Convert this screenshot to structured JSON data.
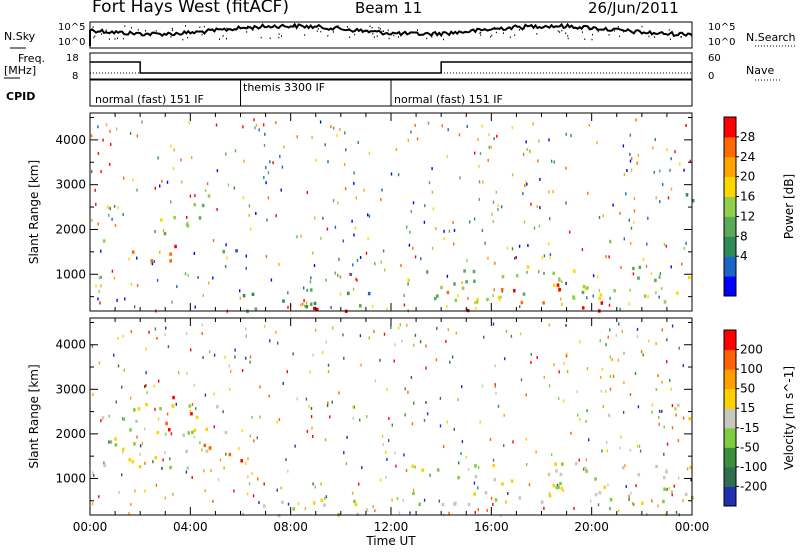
{
  "header": {
    "station": "Fort Hays West (fitACF)",
    "beam": "Beam 11",
    "date": "26/Jun/2011"
  },
  "strip_labels": {
    "nsky": "N.Sky",
    "nsearch": "N.Search",
    "nsky_ticks": [
      "10^5",
      "10^0"
    ],
    "nsearch_ticks": [
      "10^5",
      "10^0"
    ],
    "freq": "Freq.",
    "freq_unit": "[MHz]",
    "freq_ticks": [
      "18",
      "8"
    ],
    "nave": "Nave",
    "nave_ticks": [
      "60",
      "0"
    ],
    "cpid": "CPID"
  },
  "cpid_segments": [
    {
      "label": "normal (fast) 151 IF",
      "start_h": 0,
      "end_h": 6
    },
    {
      "label": "themis 3300 IF",
      "start_h": 6,
      "end_h": 12
    },
    {
      "label": "normal (fast) 151 IF",
      "start_h": 12,
      "end_h": 24
    }
  ],
  "chart_data": [
    {
      "type": "heatmap",
      "parameter": "power",
      "ylabel": "Slant Range [km]",
      "yticks": [
        1000,
        2000,
        3000,
        4000
      ],
      "ylim": [
        180,
        4600
      ],
      "colorbar_label": "Power [dB]",
      "colorbar_ticks": [
        "28",
        "24",
        "20",
        "16",
        "12",
        "8",
        "4"
      ],
      "colorbar_colors": [
        "#0000ff",
        "#1c64c8",
        "#2e8b57",
        "#5aaa5a",
        "#90d04a",
        "#ffd700",
        "#ffa500",
        "#ff6a00",
        "#ff0000"
      ],
      "regions": [
        {
          "t0": 0.5,
          "t1": 1.2,
          "r0": 1700,
          "r1": 2600,
          "level": 4
        },
        {
          "t0": 1.2,
          "t1": 3.5,
          "r0": 1200,
          "r1": 1700,
          "level": 7
        },
        {
          "t0": 2.5,
          "t1": 5.0,
          "r0": 1800,
          "r1": 2400,
          "level": 4
        },
        {
          "t0": 3.8,
          "t1": 5.2,
          "r0": 2300,
          "r1": 2900,
          "level": 3
        },
        {
          "t0": 5.0,
          "t1": 6.0,
          "r0": 1300,
          "r1": 1900,
          "level": 2
        },
        {
          "t0": 6.0,
          "t1": 11.5,
          "r0": 200,
          "r1": 700,
          "level": 2
        },
        {
          "t0": 6.5,
          "t1": 11.5,
          "r0": 200,
          "r1": 350,
          "level": 8
        },
        {
          "t0": 12.5,
          "t1": 23.5,
          "r0": 400,
          "r1": 1200,
          "level": 4
        },
        {
          "t0": 14.0,
          "t1": 20.0,
          "r0": 600,
          "r1": 800,
          "level": 7
        },
        {
          "t0": 14.5,
          "t1": 20.5,
          "r0": 200,
          "r1": 450,
          "level": 8
        },
        {
          "t0": 23.0,
          "t1": 24.0,
          "r0": 900,
          "r1": 1300,
          "level": 4
        },
        {
          "t0": 23.0,
          "t1": 24.0,
          "r0": 2300,
          "r1": 2900,
          "level": 2
        }
      ]
    },
    {
      "type": "heatmap",
      "parameter": "velocity",
      "ylabel": "Slant Range [km]",
      "yticks": [
        1000,
        2000,
        3000,
        4000
      ],
      "ylim": [
        180,
        4600
      ],
      "xlabel": "Time UT",
      "xticks": [
        "00:00",
        "04:00",
        "08:00",
        "12:00",
        "16:00",
        "20:00",
        "00:00"
      ],
      "colorbar_label": "Velocity [m s^-1]",
      "colorbar_ticks": [
        "200",
        "100",
        "50",
        "15",
        "-15",
        "-50",
        "-100",
        "-200"
      ],
      "colorbar_colors": [
        "#2030b0",
        "#2f6f4f",
        "#3a8f3a",
        "#7fcc3f",
        "#c8c8c0",
        "#ffd000",
        "#ffa000",
        "#ff6000",
        "#ff0000"
      ],
      "regions": [
        {
          "t0": 0.3,
          "t1": 5.5,
          "r0": 1200,
          "r1": 2700,
          "level": 4
        },
        {
          "t0": 3.0,
          "t1": 4.0,
          "r0": 2000,
          "r1": 3000,
          "level": 8
        },
        {
          "t0": 4.5,
          "t1": 5.5,
          "r0": 1600,
          "r1": 2200,
          "level": 6
        },
        {
          "t0": 5.0,
          "t1": 6.0,
          "r0": 1400,
          "r1": 2000,
          "level": 7
        },
        {
          "t0": 6.0,
          "t1": 11.5,
          "r0": 200,
          "r1": 600,
          "level": 4
        },
        {
          "t0": 8.0,
          "t1": 11.0,
          "r0": 200,
          "r1": 350,
          "level": 3
        },
        {
          "t0": 12.5,
          "t1": 24.0,
          "r0": 400,
          "r1": 1400,
          "level": 4
        },
        {
          "t0": 23.0,
          "t1": 24.0,
          "r0": 2300,
          "r1": 2900,
          "level": 4
        }
      ]
    }
  ]
}
